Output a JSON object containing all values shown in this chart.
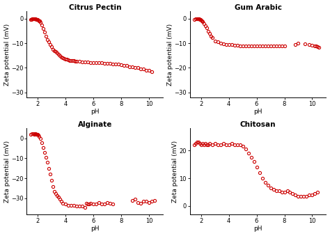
{
  "subplots": [
    {
      "title": "Citrus Pectin",
      "ylabel": "Zeta potential (mV)",
      "xlabel": "pH",
      "ylim": [
        -32,
        3
      ],
      "yticks": [
        -30,
        -20,
        -10,
        0
      ],
      "xlim": [
        1.2,
        11
      ],
      "xticks": [
        2,
        4,
        6,
        8,
        10
      ],
      "data_x": [
        1.5,
        1.55,
        1.6,
        1.65,
        1.7,
        1.75,
        1.8,
        1.85,
        1.9,
        1.95,
        2.0,
        2.05,
        2.1,
        2.15,
        2.2,
        2.3,
        2.4,
        2.5,
        2.6,
        2.7,
        2.8,
        2.9,
        3.0,
        3.1,
        3.2,
        3.3,
        3.4,
        3.5,
        3.6,
        3.7,
        3.8,
        3.9,
        4.0,
        4.1,
        4.2,
        4.3,
        4.4,
        4.5,
        4.6,
        4.7,
        4.8,
        5.0,
        5.2,
        5.4,
        5.6,
        5.8,
        6.0,
        6.2,
        6.4,
        6.6,
        6.8,
        7.0,
        7.2,
        7.4,
        7.6,
        7.8,
        8.0,
        8.2,
        8.4,
        8.6,
        8.8,
        9.0,
        9.2,
        9.4,
        9.6,
        9.8,
        10.0,
        10.2
      ],
      "data_y": [
        -0.3,
        -0.2,
        -0.1,
        0.0,
        0.1,
        0.1,
        0.0,
        -0.1,
        -0.2,
        -0.3,
        -0.4,
        -0.5,
        -0.8,
        -1.0,
        -1.5,
        -2.5,
        -4.0,
        -5.5,
        -7.0,
        -8.5,
        -9.5,
        -10.5,
        -11.5,
        -12.5,
        -13.0,
        -13.5,
        -14.0,
        -14.5,
        -15.0,
        -15.5,
        -16.0,
        -16.2,
        -16.5,
        -16.5,
        -16.8,
        -17.0,
        -17.0,
        -17.0,
        -17.0,
        -17.2,
        -17.2,
        -17.2,
        -17.5,
        -17.5,
        -17.5,
        -17.8,
        -17.8,
        -17.8,
        -18.0,
        -18.0,
        -18.2,
        -18.2,
        -18.2,
        -18.5,
        -18.5,
        -18.5,
        -18.8,
        -19.0,
        -19.0,
        -19.5,
        -19.5,
        -20.0,
        -20.0,
        -20.5,
        -20.5,
        -21.0,
        -21.0,
        -21.5
      ]
    },
    {
      "title": "Gum Arabic",
      "ylabel": "Zeta potential (mV)",
      "xlabel": "pH",
      "ylim": [
        -32,
        3
      ],
      "yticks": [
        -30,
        -20,
        -10,
        0
      ],
      "xlim": [
        1.2,
        11
      ],
      "xticks": [
        2,
        4,
        6,
        8,
        10
      ],
      "data_x": [
        1.5,
        1.6,
        1.7,
        1.75,
        1.8,
        1.85,
        1.9,
        1.95,
        2.0,
        2.05,
        2.1,
        2.2,
        2.3,
        2.4,
        2.5,
        2.6,
        2.7,
        2.8,
        3.0,
        3.2,
        3.4,
        3.6,
        3.8,
        4.0,
        4.2,
        4.4,
        4.6,
        4.8,
        5.0,
        5.2,
        5.4,
        5.6,
        5.8,
        6.0,
        6.2,
        6.4,
        6.6,
        6.8,
        7.0,
        7.2,
        7.4,
        7.6,
        7.8,
        8.0,
        8.8,
        9.0,
        9.5,
        9.8,
        10.0,
        10.2,
        10.3,
        10.4,
        10.5
      ],
      "data_y": [
        -0.2,
        -0.1,
        0.0,
        0.1,
        0.0,
        -0.1,
        -0.2,
        -0.3,
        -0.5,
        -0.8,
        -1.2,
        -2.0,
        -2.8,
        -3.8,
        -5.0,
        -6.0,
        -7.0,
        -7.8,
        -9.0,
        -9.5,
        -10.0,
        -10.2,
        -10.5,
        -10.5,
        -10.5,
        -10.8,
        -10.8,
        -11.0,
        -11.0,
        -11.0,
        -11.0,
        -11.0,
        -11.0,
        -11.0,
        -11.0,
        -11.0,
        -11.0,
        -11.0,
        -11.0,
        -11.0,
        -11.0,
        -11.0,
        -11.0,
        -11.0,
        -10.5,
        -10.0,
        -10.2,
        -10.5,
        -10.8,
        -11.0,
        -11.2,
        -11.5,
        -11.8
      ]
    },
    {
      "title": "Alginate",
      "ylabel": "Zeta potential (mV)",
      "xlabel": "pH",
      "ylim": [
        -38,
        5
      ],
      "yticks": [
        -30,
        -20,
        -10,
        0
      ],
      "xlim": [
        1.2,
        11
      ],
      "xticks": [
        2,
        4,
        6,
        8,
        10
      ],
      "data_x": [
        1.5,
        1.6,
        1.7,
        1.75,
        1.8,
        1.85,
        1.9,
        1.95,
        2.0,
        2.05,
        2.1,
        2.2,
        2.3,
        2.4,
        2.5,
        2.6,
        2.7,
        2.8,
        2.9,
        3.0,
        3.1,
        3.2,
        3.3,
        3.4,
        3.5,
        3.6,
        3.7,
        3.8,
        4.0,
        4.2,
        4.4,
        4.6,
        4.8,
        5.0,
        5.2,
        5.4,
        5.5,
        5.6,
        5.7,
        5.8,
        6.0,
        6.2,
        6.4,
        6.6,
        6.8,
        7.0,
        7.2,
        7.4,
        8.8,
        9.0,
        9.2,
        9.4,
        9.6,
        9.8,
        10.0,
        10.2,
        10.4
      ],
      "data_y": [
        2.0,
        2.5,
        2.5,
        2.0,
        2.5,
        2.5,
        2.0,
        2.0,
        2.0,
        1.5,
        1.0,
        0.0,
        -2.0,
        -4.5,
        -7.0,
        -9.5,
        -12.0,
        -15.0,
        -18.0,
        -21.0,
        -24.0,
        -26.5,
        -27.5,
        -28.5,
        -29.5,
        -30.5,
        -31.5,
        -32.5,
        -33.0,
        -33.5,
        -33.5,
        -33.5,
        -34.0,
        -34.0,
        -34.0,
        -34.5,
        -32.5,
        -33.0,
        -33.0,
        -32.5,
        -33.0,
        -33.0,
        -32.0,
        -33.0,
        -33.0,
        -32.0,
        -32.5,
        -33.0,
        -31.0,
        -30.5,
        -32.0,
        -32.5,
        -31.5,
        -31.5,
        -32.0,
        -31.5,
        -31.0
      ]
    },
    {
      "title": "Chitosan",
      "ylabel": "Zeta potential (mV)",
      "xlabel": "pH",
      "ylim": [
        -3,
        28
      ],
      "yticks": [
        0,
        10,
        20
      ],
      "xlim": [
        1.2,
        11
      ],
      "xticks": [
        2,
        4,
        6,
        8,
        10
      ],
      "data_x": [
        1.5,
        1.6,
        1.7,
        1.8,
        1.9,
        2.0,
        2.1,
        2.2,
        2.3,
        2.4,
        2.5,
        2.6,
        2.8,
        3.0,
        3.2,
        3.4,
        3.6,
        3.8,
        4.0,
        4.2,
        4.4,
        4.6,
        4.8,
        5.0,
        5.2,
        5.4,
        5.6,
        5.8,
        6.0,
        6.2,
        6.4,
        6.6,
        6.8,
        7.0,
        7.2,
        7.4,
        7.6,
        7.8,
        8.0,
        8.2,
        8.4,
        8.6,
        8.8,
        9.0,
        9.2,
        9.4,
        9.6,
        9.8,
        10.0,
        10.2,
        10.4
      ],
      "data_y": [
        22.0,
        22.5,
        23.0,
        23.0,
        22.5,
        22.0,
        22.5,
        22.0,
        22.5,
        22.0,
        22.0,
        22.5,
        22.0,
        22.5,
        22.0,
        22.0,
        22.5,
        22.0,
        22.0,
        22.5,
        22.0,
        22.0,
        22.0,
        21.5,
        20.5,
        19.0,
        17.5,
        16.0,
        14.0,
        12.0,
        10.0,
        8.5,
        7.5,
        6.5,
        6.0,
        5.5,
        5.5,
        5.0,
        5.0,
        5.5,
        5.0,
        4.5,
        4.0,
        3.5,
        3.5,
        3.5,
        3.5,
        4.0,
        4.0,
        4.5,
        5.0
      ]
    }
  ],
  "marker_color": "#cc0000",
  "marker_facecolor": "none",
  "marker_style": "o",
  "marker_size": 3.0,
  "marker_linewidth": 0.8,
  "bg_color": "#ffffff",
  "figure_bg": "#ffffff",
  "title_fontsize": 7.5,
  "label_fontsize": 6.5,
  "tick_fontsize": 6.0
}
